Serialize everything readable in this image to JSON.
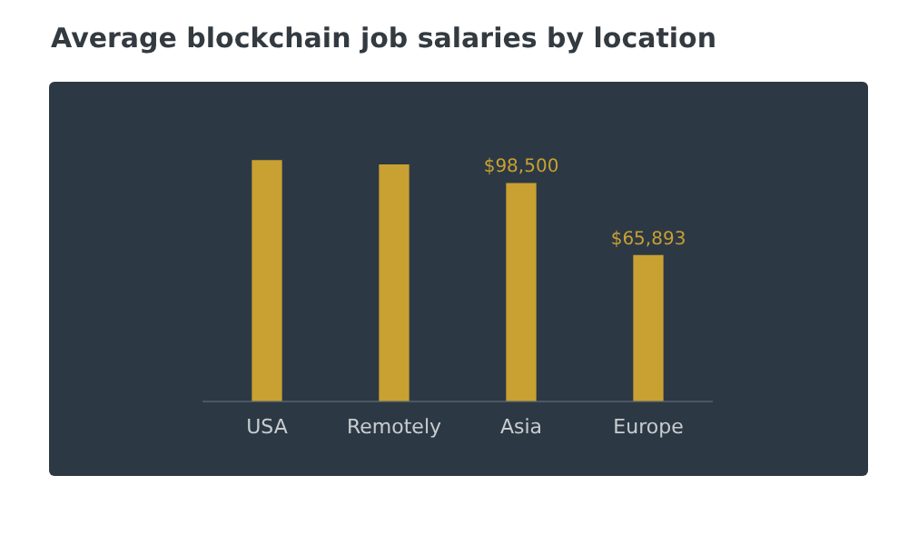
{
  "chart_data": {
    "type": "bar",
    "title": "Average blockchain job salaries by location",
    "categories": [
      "USA",
      "Remotely",
      "Asia",
      "Europe"
    ],
    "values": [
      108900,
      107000,
      98500,
      65893
    ],
    "value_labels": [
      null,
      null,
      "$98,500",
      "$65,893"
    ],
    "color": "#c9a032",
    "grid": false,
    "legend": false
  }
}
